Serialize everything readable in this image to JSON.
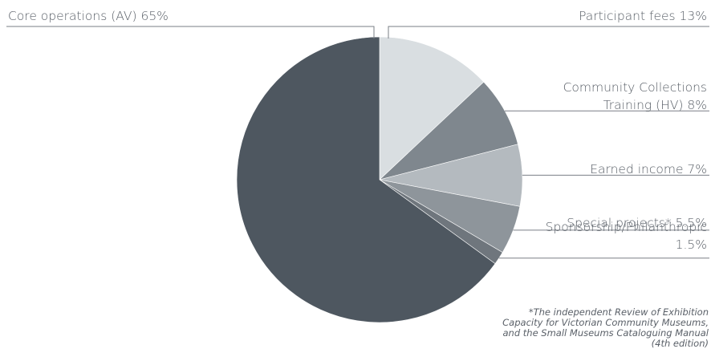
{
  "chart_data": {
    "type": "pie",
    "slices": [
      {
        "label": "Participant fees 13%",
        "value": 13,
        "color": "#d9dee1"
      },
      {
        "label": "Community Collections Training (HV) 8%",
        "label_lines": [
          "Community Collections",
          "Training (HV) 8%"
        ],
        "value": 8,
        "color": "#7f878e"
      },
      {
        "label": "Earned income 7%",
        "value": 7,
        "color": "#b4babf"
      },
      {
        "label": "Special projects* 5.5%",
        "value": 5.5,
        "color": "#8e959b"
      },
      {
        "label": "Sponsorship/Philanthropic 1.5%",
        "label_lines": [
          "Sponsorship/Philanthropic",
          "1.5%"
        ],
        "value": 1.5,
        "color": "#6f767d"
      },
      {
        "label": "Core operations (AV) 65%",
        "value": 65,
        "color": "#4e5760"
      }
    ],
    "footnote_lines": [
      "*The independent Review of Exhibition",
      "Capacity for Victorian Community Museums,",
      "and the Small Museums Cataloguing Manual",
      "(4th edition)"
    ]
  }
}
